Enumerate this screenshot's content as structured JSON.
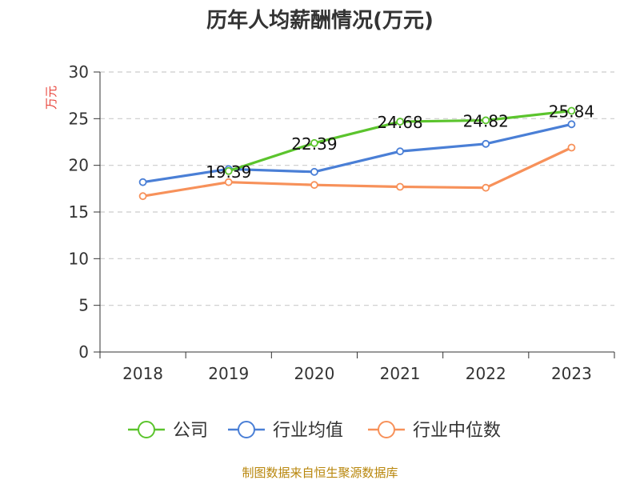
{
  "chart_data": {
    "type": "line",
    "title": "历年人均薪酬情况(万元)",
    "ylabel": "万元",
    "xlabel": "",
    "categories": [
      "2018",
      "2019",
      "2020",
      "2021",
      "2022",
      "2023"
    ],
    "ylim": [
      0,
      30
    ],
    "yticks": [
      0,
      5,
      10,
      15,
      20,
      25,
      30
    ],
    "grid": true,
    "legend_position": "bottom",
    "series": [
      {
        "name": "公司",
        "color": "#5bc42d",
        "values": [
          null,
          19.39,
          22.39,
          24.68,
          24.82,
          25.84
        ],
        "labels": [
          "",
          "19.39",
          "22.39",
          "24.68",
          "24.82",
          "25.84"
        ]
      },
      {
        "name": "行业均值",
        "color": "#4a7fd6",
        "values": [
          18.2,
          19.6,
          19.3,
          21.5,
          22.3,
          24.4
        ]
      },
      {
        "name": "行业中位数",
        "color": "#f7915a",
        "values": [
          16.7,
          18.2,
          17.9,
          17.7,
          17.6,
          21.9
        ]
      }
    ]
  },
  "source": "制图数据来自恒生聚源数据库"
}
